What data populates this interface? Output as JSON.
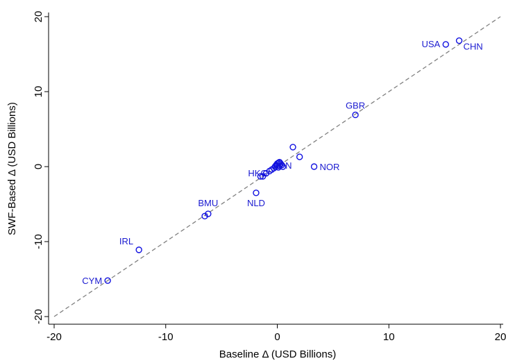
{
  "chart_data": {
    "type": "scatter",
    "title": "",
    "xlabel": "Baseline Δ (USD Billions)",
    "ylabel": "SWF-Based Δ (USD Billions)",
    "xlim": [
      -20,
      20
    ],
    "ylim": [
      -20,
      20
    ],
    "xticks": [
      -20,
      -10,
      0,
      10,
      20
    ],
    "yticks": [
      -20,
      -10,
      0,
      10,
      20
    ],
    "xtick_labels": [
      "-20",
      "-10",
      "0",
      "10",
      "20"
    ],
    "ytick_labels": [
      "-20",
      "-10",
      "0",
      "10",
      "20"
    ],
    "grid": false,
    "reference_line": {
      "style": "dashed",
      "color": "#808080",
      "from": [
        -20,
        -20
      ],
      "to": [
        20,
        20
      ]
    },
    "marker_color": "#1010e0",
    "label_color": "#1a1ad0",
    "points": [
      {
        "x": 16.3,
        "y": 16.8,
        "label": "CHN"
      },
      {
        "x": 15.1,
        "y": 16.3,
        "label": "USA"
      },
      {
        "x": 7.0,
        "y": 6.9,
        "label": "GBR"
      },
      {
        "x": 1.4,
        "y": 2.6,
        "label": ""
      },
      {
        "x": 2.0,
        "y": 1.3,
        "label": ""
      },
      {
        "x": 3.3,
        "y": 0.0,
        "label": "NOR"
      },
      {
        "x": 0.4,
        "y": 0.2,
        "label": "JPN"
      },
      {
        "x": -1.5,
        "y": -1.3,
        "label": "HKG"
      },
      {
        "x": -1.9,
        "y": -3.5,
        "label": "NLD"
      },
      {
        "x": -6.2,
        "y": -6.3,
        "label": "BMU"
      },
      {
        "x": -6.5,
        "y": -6.6,
        "label": ""
      },
      {
        "x": -12.4,
        "y": -11.1,
        "label": "IRL"
      },
      {
        "x": -15.2,
        "y": -15.2,
        "label": "CYM"
      },
      {
        "x": 0.2,
        "y": 0.6,
        "label": ""
      },
      {
        "x": 0.1,
        "y": 0.5,
        "label": ""
      },
      {
        "x": 0.0,
        "y": 0.4,
        "label": ""
      },
      {
        "x": 0.3,
        "y": 0.4,
        "label": ""
      },
      {
        "x": -0.1,
        "y": 0.2,
        "label": ""
      },
      {
        "x": 0.2,
        "y": 0.1,
        "label": ""
      },
      {
        "x": -0.2,
        "y": 0.0,
        "label": ""
      },
      {
        "x": 0.5,
        "y": 0.0,
        "label": ""
      },
      {
        "x": -0.3,
        "y": -0.2,
        "label": ""
      },
      {
        "x": -0.5,
        "y": -0.4,
        "label": ""
      },
      {
        "x": -0.7,
        "y": -0.6,
        "label": ""
      },
      {
        "x": -1.0,
        "y": -0.9,
        "label": ""
      },
      {
        "x": -1.3,
        "y": -1.3,
        "label": ""
      },
      {
        "x": 0.1,
        "y": -0.1,
        "label": ""
      },
      {
        "x": 0.0,
        "y": 0.1,
        "label": ""
      }
    ]
  }
}
